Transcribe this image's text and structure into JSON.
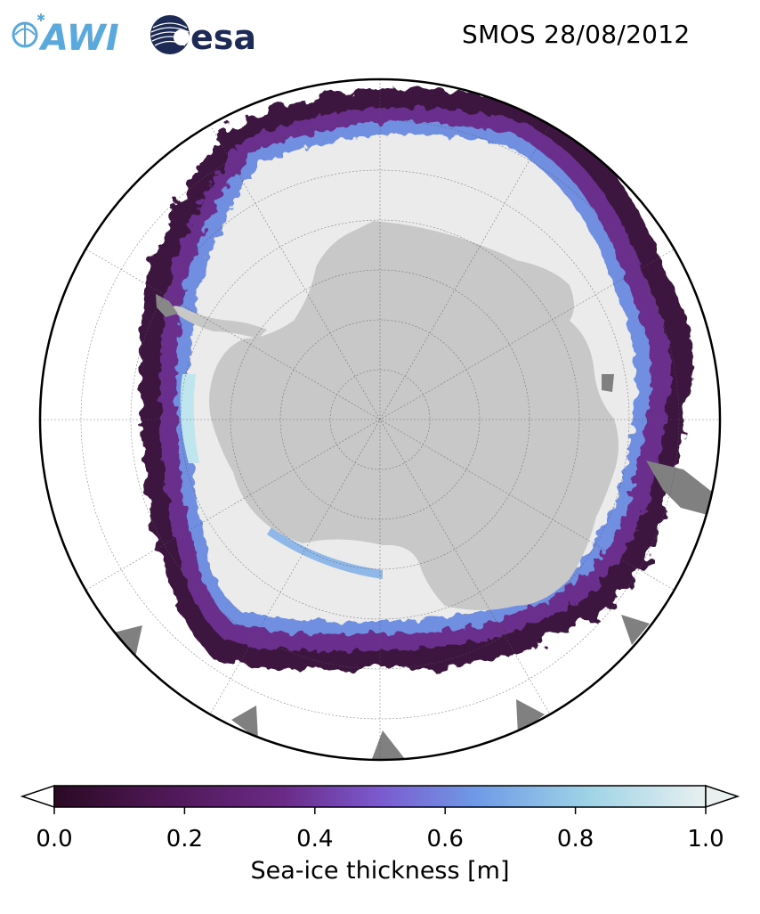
{
  "title": "SMOS 28/08/2012",
  "logos": {
    "left_logo_text": "AWI",
    "right_logo_text": "esa"
  },
  "map": {
    "projection": "south-polar-stereographic",
    "land_color": "#c8c8c8",
    "thick_ice_color": "#ebebeb",
    "ocean_color": "#ffffff",
    "grid": true
  },
  "colorbar": {
    "label": "Sea-ice thickness [m]",
    "min": 0.0,
    "max": 1.0,
    "extend": "both",
    "ticks": [
      "0.0",
      "0.2",
      "0.4",
      "0.6",
      "0.8",
      "1.0"
    ],
    "tick_values": [
      0.0,
      0.2,
      0.4,
      0.6,
      0.8,
      1.0
    ],
    "colormap": [
      "#2a0a24",
      "#4b1650",
      "#6a2a86",
      "#7b5acf",
      "#6f9be6",
      "#9fd3e6",
      "#e8f0f0"
    ]
  },
  "colors": {
    "awi_blue": "#5aa9dc",
    "esa_navy": "#1c2a55"
  }
}
